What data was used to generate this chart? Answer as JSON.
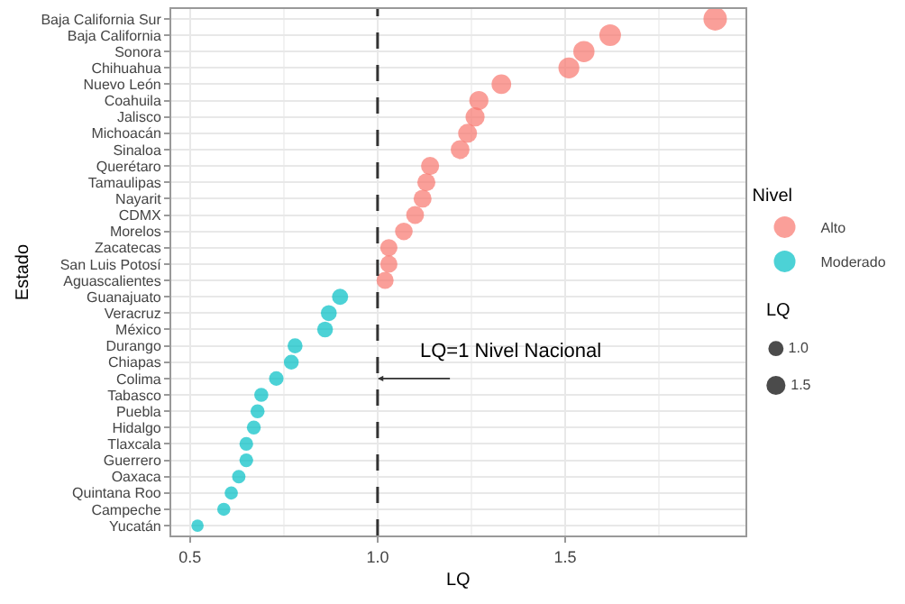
{
  "chart_data": {
    "type": "bubble",
    "orientation": "horizontal",
    "xlabel": "LQ",
    "ylabel": "Estado",
    "legend_title": "Nivel",
    "categories": [
      "Baja California Sur",
      "Baja California",
      "Sonora",
      "Chihuahua",
      "Nuevo León",
      "Coahuila",
      "Jalisco",
      "Michoacán",
      "Sinaloa",
      "Querétaro",
      "Tamaulipas",
      "Nayarit",
      "CDMX",
      "Morelos",
      "Zacatecas",
      "San Luis Potosí",
      "Aguascalientes",
      "Guanajuato",
      "Veracruz",
      "México",
      "Durango",
      "Chiapas",
      "Colima",
      "Tabasco",
      "Puebla",
      "Hidalgo",
      "Tlaxcala",
      "Guerrero",
      "Oaxaca",
      "Quintana Roo",
      "Campeche",
      "Yucatán"
    ],
    "series": [
      {
        "name": "Alto",
        "color": "#f8766d",
        "values": [
          1.9,
          1.62,
          1.55,
          1.51,
          1.33,
          1.27,
          1.26,
          1.24,
          1.22,
          1.14,
          1.13,
          1.12,
          1.1,
          1.07,
          1.03,
          1.03,
          1.02,
          null,
          null,
          null,
          null,
          null,
          null,
          null,
          null,
          null,
          null,
          null,
          null,
          null,
          null,
          null
        ],
        "sizes": [
          1.9,
          1.62,
          1.55,
          1.51,
          1.33,
          1.27,
          1.26,
          1.24,
          1.22,
          1.14,
          1.13,
          1.12,
          1.1,
          1.07,
          1.03,
          1.03,
          1.02,
          null,
          null,
          null,
          null,
          null,
          null,
          null,
          null,
          null,
          null,
          null,
          null,
          null,
          null,
          null
        ]
      },
      {
        "name": "Moderado",
        "color": "#00bfc4",
        "values": [
          null,
          null,
          null,
          null,
          null,
          null,
          null,
          null,
          null,
          null,
          null,
          null,
          null,
          null,
          null,
          null,
          null,
          0.9,
          0.87,
          0.86,
          0.78,
          0.77,
          0.73,
          0.69,
          0.68,
          0.67,
          0.65,
          0.65,
          0.63,
          0.61,
          0.59,
          0.52
        ],
        "sizes": [
          null,
          null,
          null,
          null,
          null,
          null,
          null,
          null,
          null,
          null,
          null,
          null,
          null,
          null,
          null,
          null,
          null,
          0.9,
          0.87,
          0.86,
          0.78,
          0.77,
          0.73,
          0.69,
          0.68,
          0.67,
          0.65,
          0.65,
          0.63,
          0.61,
          0.59,
          0.52
        ]
      }
    ],
    "size_legend": [
      {
        "value": 1.0,
        "label": "1.0"
      },
      {
        "value": 1.5,
        "label": "1.5"
      }
    ],
    "xlim": [
      0.45,
      1.98
    ],
    "xticks": [
      {
        "value": 0.5,
        "label": "0.5"
      },
      {
        "value": 1.0,
        "label": "1.0"
      },
      {
        "value": 1.5,
        "label": "1.5"
      }
    ],
    "ref_lines": [
      {
        "axis": "x",
        "value": 1.0,
        "label": "LQ=1 Nivel Nacional",
        "line_style": "dashed",
        "color": "#333333"
      }
    ],
    "grid": true,
    "legend": "right"
  }
}
